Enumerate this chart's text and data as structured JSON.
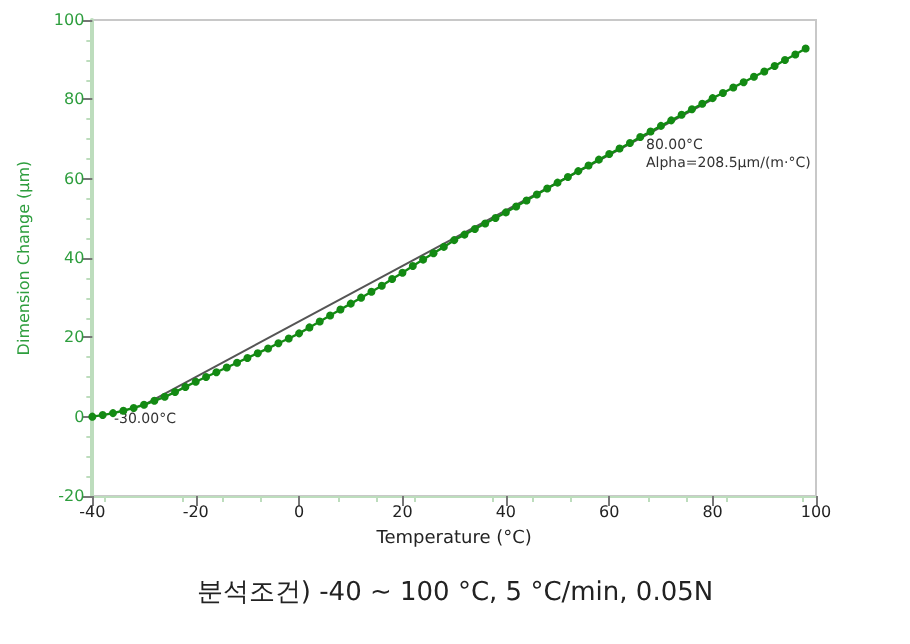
{
  "chart_data": {
    "type": "line",
    "xlabel": "Temperature (°C)",
    "ylabel": "Dimension Change (μm)",
    "xlim": [
      -40,
      100
    ],
    "xticks": [
      -40,
      -20,
      0,
      20,
      40,
      60,
      80,
      100
    ],
    "ylim": [
      -20,
      100
    ],
    "yticks": [
      -20,
      0,
      20,
      40,
      60,
      80,
      100
    ],
    "grid": false,
    "series": [
      {
        "color": "#138a13",
        "marker": "circle",
        "line_style": "solid",
        "x": [
          -40,
          -38,
          -36,
          -34,
          -32,
          -30,
          -28,
          -26,
          -24,
          -22,
          -20,
          -18,
          -16,
          -14,
          -12,
          -10,
          -8,
          -6,
          -4,
          -2,
          0,
          2,
          4,
          6,
          8,
          10,
          12,
          14,
          16,
          18,
          20,
          22,
          24,
          26,
          28,
          30,
          32,
          34,
          36,
          38,
          40,
          42,
          44,
          46,
          48,
          50,
          52,
          54,
          56,
          58,
          60,
          62,
          64,
          66,
          68,
          70,
          72,
          74,
          76,
          78,
          80,
          82,
          84,
          86,
          88,
          90,
          92,
          94,
          96,
          98
        ],
        "values": [
          0,
          0.4,
          0.9,
          1.5,
          2.2,
          3,
          4,
          5,
          6.2,
          7.5,
          8.8,
          10,
          11.2,
          12.4,
          13.6,
          14.8,
          16,
          17.2,
          18.5,
          19.7,
          21,
          22.5,
          24,
          25.5,
          27,
          28.5,
          30,
          31.5,
          33,
          34.7,
          36.3,
          38,
          39.6,
          41.2,
          42.8,
          44.5,
          45.9,
          47.3,
          48.7,
          50.1,
          51.5,
          53,
          54.5,
          56,
          57.5,
          59,
          60.4,
          61.9,
          63.3,
          64.8,
          66.2,
          67.6,
          69,
          70.5,
          71.9,
          73.3,
          74.7,
          76.1,
          77.5,
          78.9,
          80.3,
          81.6,
          83,
          84.3,
          85.7,
          87,
          88.4,
          89.9,
          91.3,
          92.8
        ]
      },
      {
        "color": "#555555",
        "marker": "none",
        "line_style": "solid",
        "x": [
          -30,
          80
        ],
        "values": [
          3,
          80
        ]
      }
    ],
    "annotations": [
      "-30.00°C",
      "80.00°C",
      "Alpha=208.5μm/(m·°C)",
      "분석조건) -40 ~ 100 °C, 5 °C/min, 0.05N"
    ]
  }
}
